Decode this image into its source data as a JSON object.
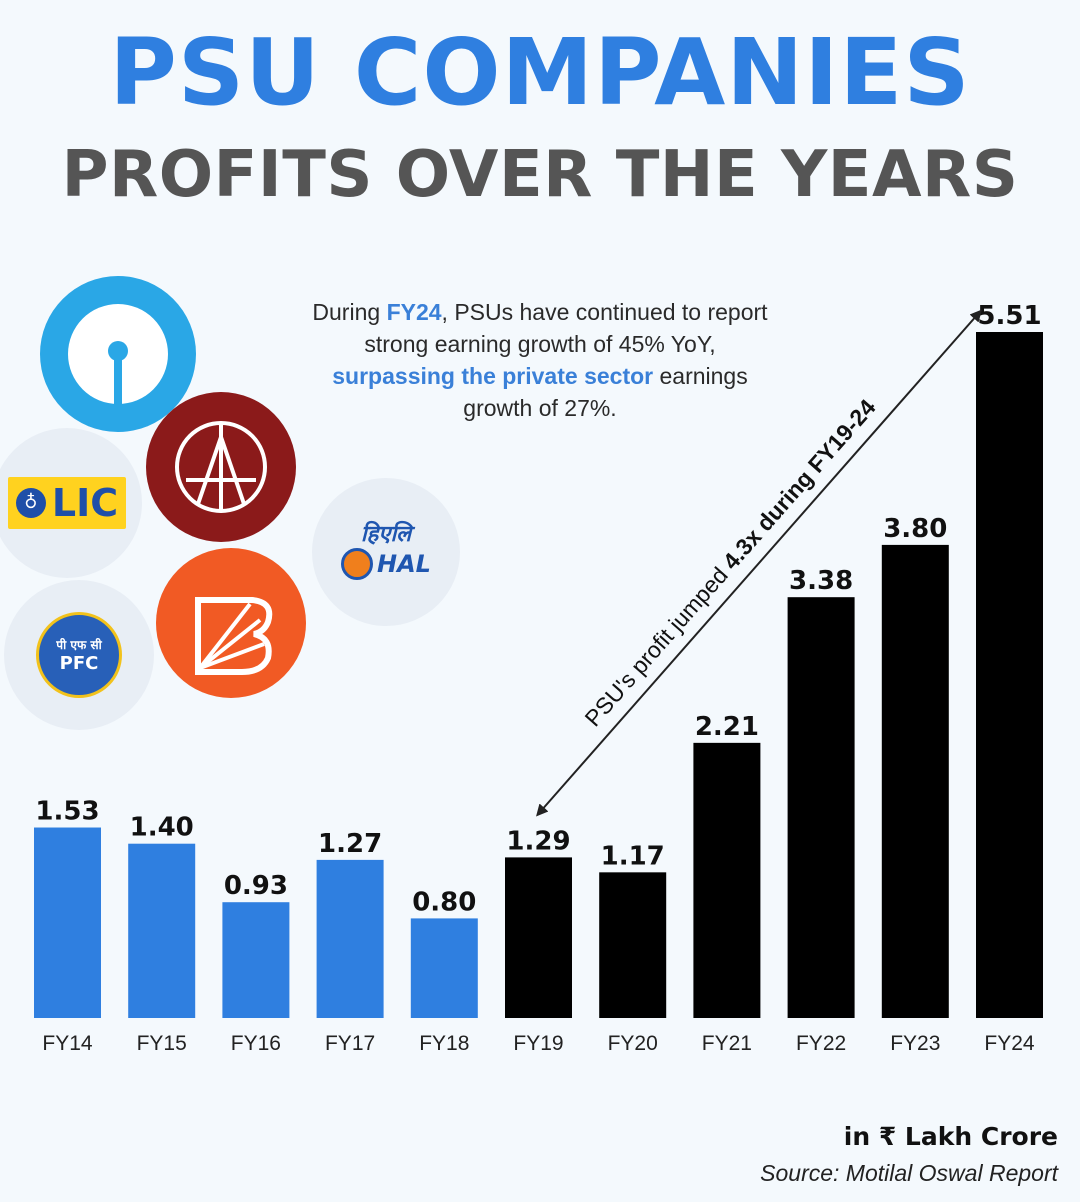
{
  "title_line1": "PSU COMPANIES",
  "title_line2": "PROFITS OVER THE YEARS",
  "note": {
    "part1": "During ",
    "fy": "FY24",
    "part2": ", PSUs have continued to report strong earning growth of 45% YoY, ",
    "highlight": "surpassing the private sector",
    "part3": " earnings growth of 27%."
  },
  "logos": {
    "lic": "LIC",
    "hal_hindi": "हिएलि",
    "hal": "HAL",
    "pfc_hindi": "पी एफ सी",
    "pfc": "PFC"
  },
  "annotation": {
    "text_pre": "PSU's profit jumped ",
    "text_bold": "4.3x during FY19-24"
  },
  "unit_label": "in ₹ Lakh Crore",
  "source": "Source: Motilal Oswal Report",
  "colors": {
    "blue_bars": "#2f7fe0",
    "black_bars": "#000000"
  },
  "chart_data": {
    "type": "bar",
    "categories": [
      "FY14",
      "FY15",
      "FY16",
      "FY17",
      "FY18",
      "FY19",
      "FY20",
      "FY21",
      "FY22",
      "FY23",
      "FY24"
    ],
    "values": [
      1.53,
      1.4,
      0.93,
      1.27,
      0.8,
      1.29,
      1.17,
      2.21,
      3.38,
      3.8,
      5.51
    ],
    "data_labels": [
      "1.53",
      "1.40",
      "0.93",
      "1.27",
      "0.80",
      "1.29",
      "1.17",
      "2.21",
      "3.38",
      "3.80",
      "5.51"
    ],
    "bar_colors": [
      "#2f7fe0",
      "#2f7fe0",
      "#2f7fe0",
      "#2f7fe0",
      "#2f7fe0",
      "#000000",
      "#000000",
      "#000000",
      "#000000",
      "#000000",
      "#000000"
    ],
    "title": "PSU COMPANIES PROFITS OVER THE YEARS",
    "xlabel": "",
    "ylabel": "",
    "ylim": [
      0,
      5.51
    ],
    "grid": false,
    "legend": "none"
  }
}
